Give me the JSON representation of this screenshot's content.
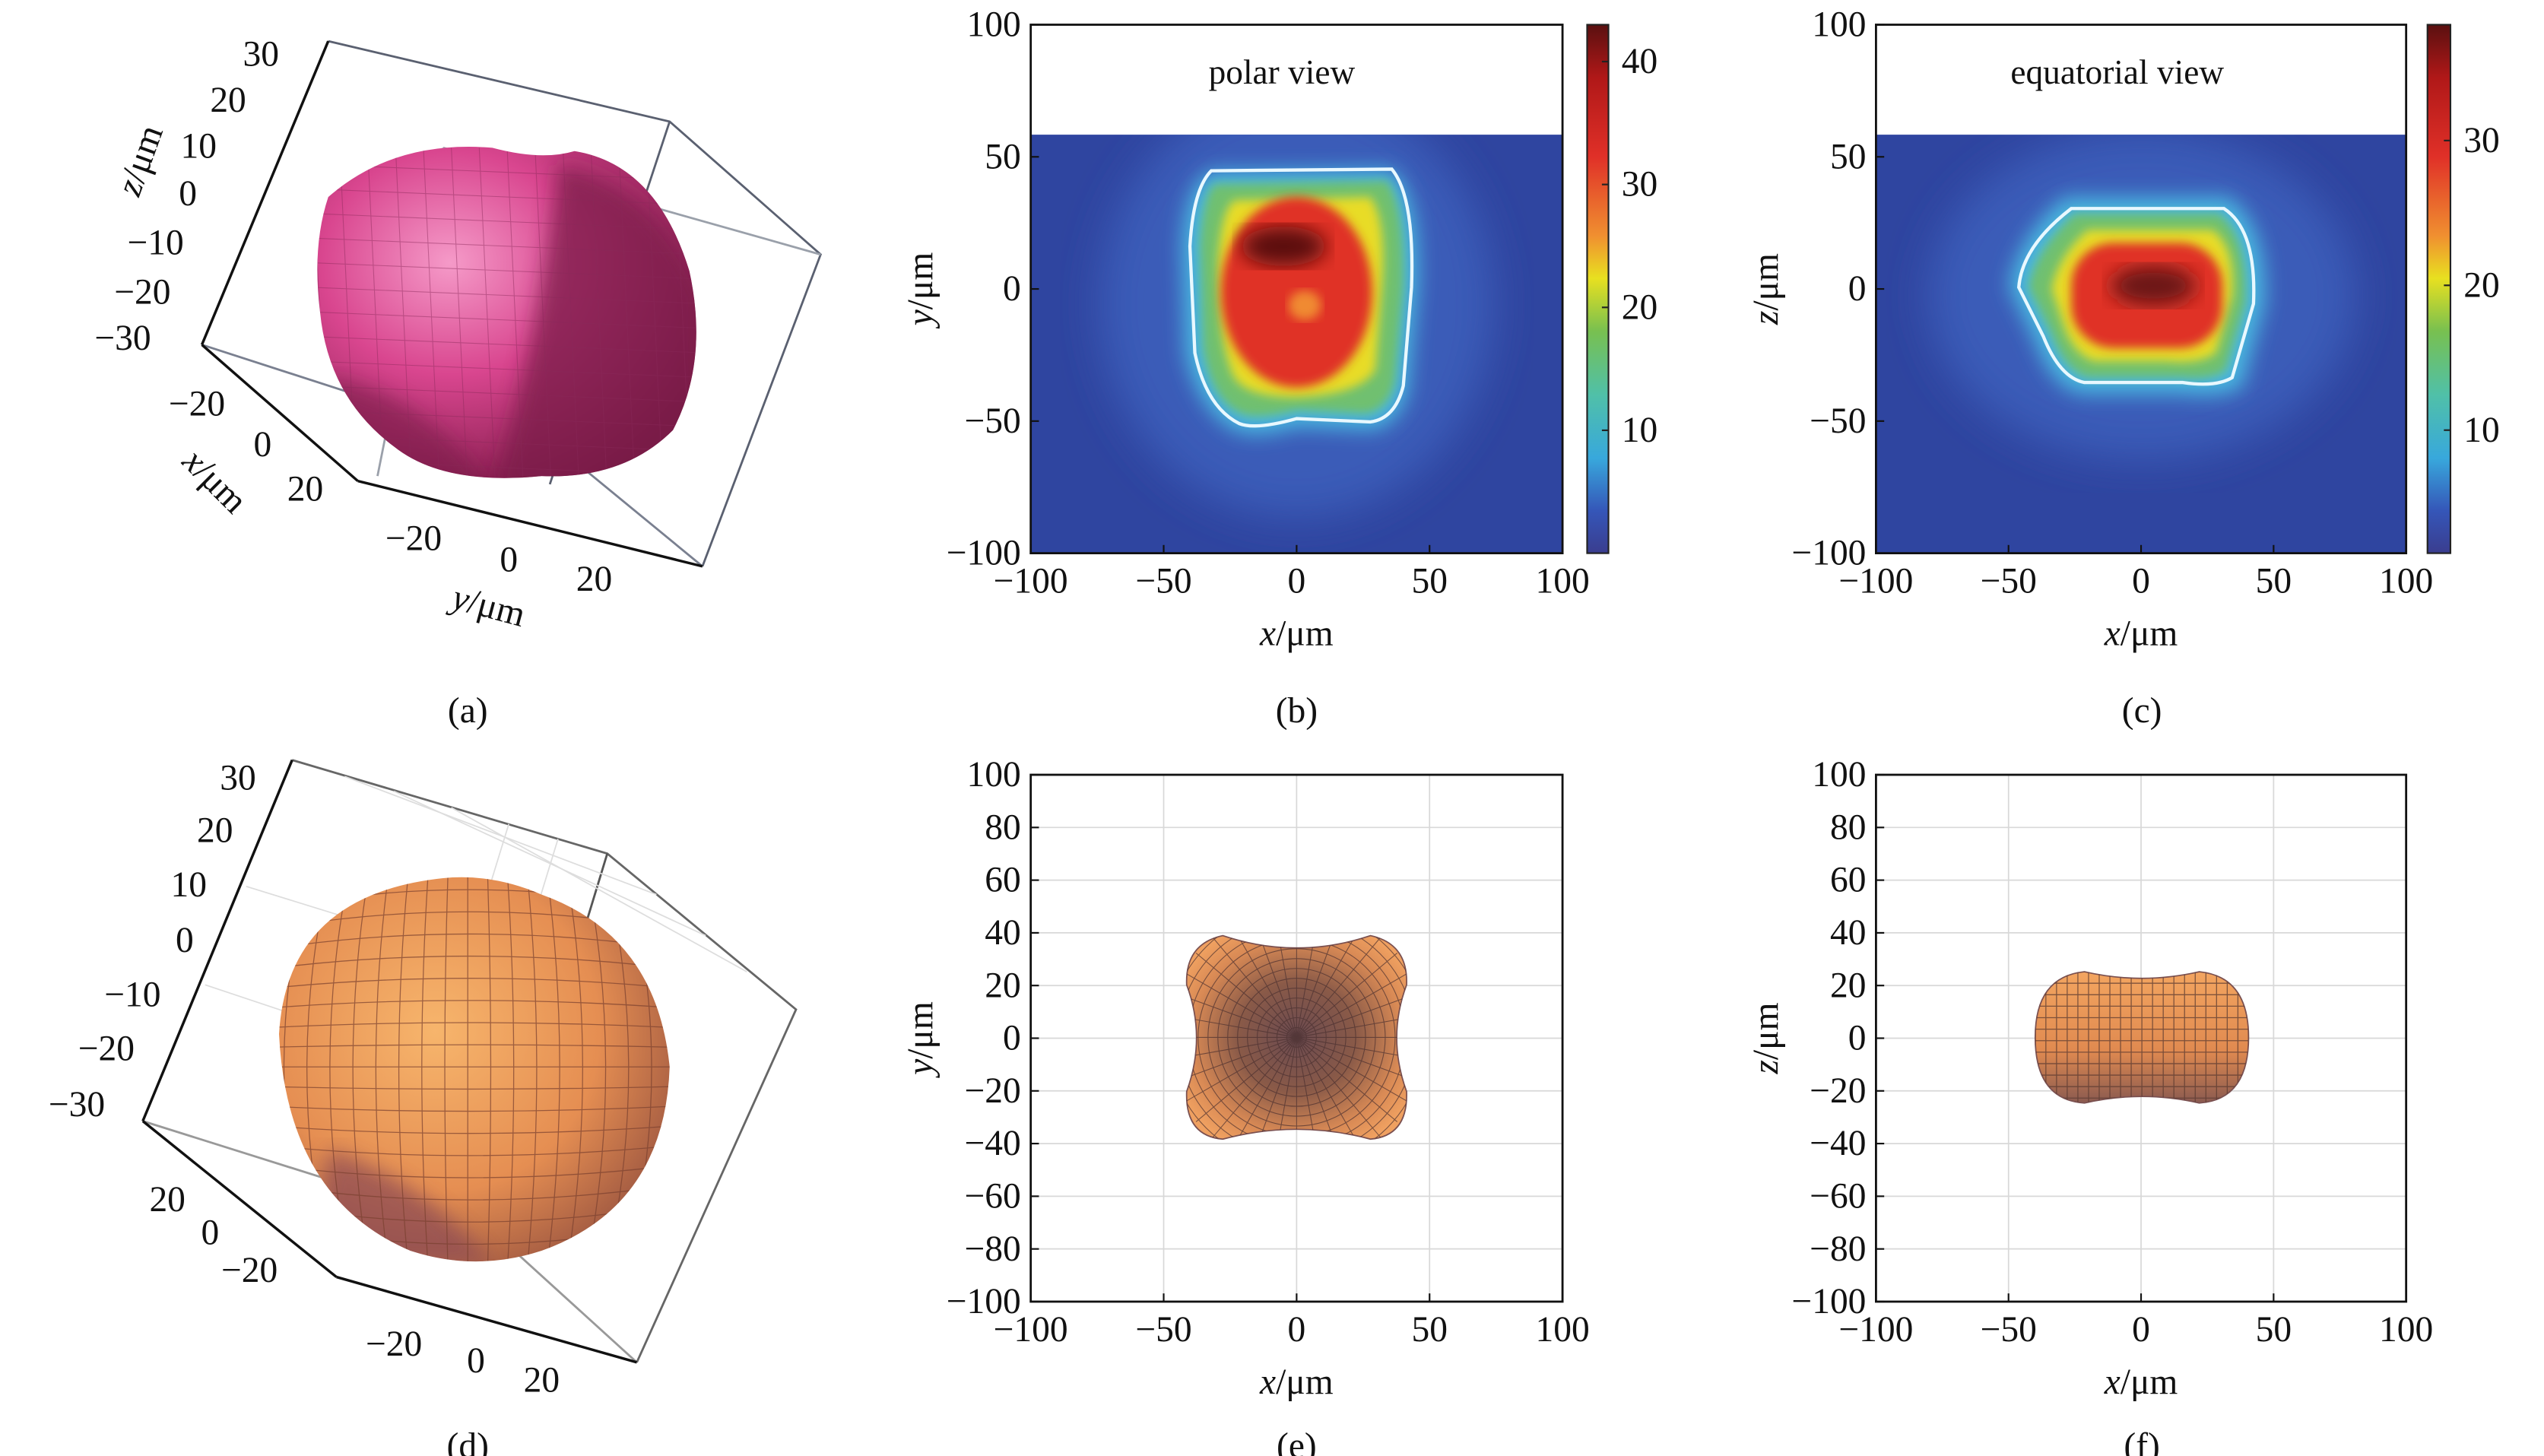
{
  "chart_data": [
    {
      "panel": "(a)",
      "type": "surface3d",
      "surface_color": "#c8337c",
      "axes": {
        "x": {
          "label_var": "x",
          "label_unit": "/μm",
          "ticks": [
            -20,
            0,
            20
          ]
        },
        "y": {
          "label_var": "y",
          "label_unit": "/μm",
          "ticks": [
            -20,
            0,
            20
          ]
        },
        "z": {
          "label_var": "z",
          "label_unit": "/μm",
          "ticks": [
            30,
            20,
            10,
            0,
            -10,
            -20,
            -30
          ]
        }
      }
    },
    {
      "panel": "(b)",
      "type": "heatmap",
      "annotation": "polar view",
      "xlabel_var": "x",
      "xlabel_unit": "/μm",
      "ylabel_var": "y",
      "ylabel_unit": "/μm",
      "xlim": [
        -100,
        100
      ],
      "ylim": [
        -100,
        100
      ],
      "xticks": [
        -100,
        -50,
        0,
        50,
        100
      ],
      "yticks": [
        -100,
        -50,
        0,
        50,
        100
      ],
      "colorbar": {
        "ticks": [
          10,
          20,
          30,
          40
        ],
        "range": [
          0,
          43
        ],
        "colormap": "jet"
      }
    },
    {
      "panel": "(c)",
      "type": "heatmap",
      "annotation": "equatorial view",
      "xlabel_var": "x",
      "xlabel_unit": "/μm",
      "ylabel_var": "z",
      "ylabel_unit": "/μm",
      "xlim": [
        -100,
        100
      ],
      "ylim": [
        -100,
        100
      ],
      "xticks": [
        -100,
        -50,
        0,
        50,
        100
      ],
      "yticks": [
        -100,
        -50,
        0,
        50,
        100
      ],
      "colorbar": {
        "ticks": [
          10,
          20,
          30
        ],
        "range": [
          1.5,
          38
        ],
        "colormap": "jet"
      }
    },
    {
      "panel": "(d)",
      "type": "surface3d",
      "surface_color": "#e8955a",
      "grid": true,
      "axes": {
        "x": {
          "ticks": [
            20,
            0,
            -20
          ]
        },
        "y": {
          "ticks": [
            -20,
            0,
            20
          ]
        },
        "z": {
          "ticks": [
            30,
            20,
            10,
            0,
            -10,
            -20,
            -30
          ]
        }
      }
    },
    {
      "panel": "(e)",
      "type": "surface_projection",
      "xlabel_var": "x",
      "xlabel_unit": "/μm",
      "ylabel_var": "y",
      "ylabel_unit": "/μm",
      "xlim": [
        -100,
        100
      ],
      "ylim": [
        -100,
        100
      ],
      "xticks": [
        -100,
        -50,
        0,
        50,
        100
      ],
      "yticks": [
        100,
        80,
        60,
        40,
        20,
        0,
        -20,
        -40,
        -60,
        -80,
        -100
      ],
      "grid": true
    },
    {
      "panel": "(f)",
      "type": "surface_projection",
      "xlabel_var": "x",
      "xlabel_unit": "/μm",
      "ylabel_var": "z",
      "ylabel_unit": "/μm",
      "xlim": [
        -100,
        100
      ],
      "ylim": [
        -100,
        100
      ],
      "xticks": [
        -100,
        -50,
        0,
        50,
        100
      ],
      "yticks": [
        100,
        80,
        60,
        40,
        20,
        0,
        -20,
        -40,
        -60,
        -80,
        -100
      ],
      "grid": true
    }
  ],
  "captions": [
    "(a)",
    "(b)",
    "(c)",
    "(d)",
    "(e)",
    "(f)"
  ]
}
